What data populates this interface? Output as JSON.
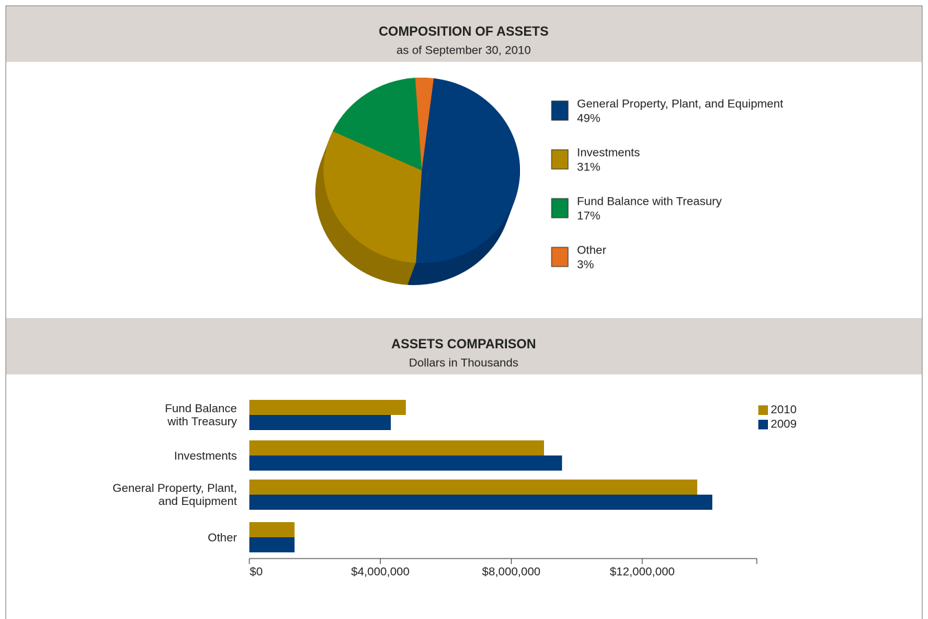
{
  "chart_data": [
    {
      "type": "pie",
      "title": "COMPOSITION OF ASSETS",
      "subtitle": "as of September 30, 2010",
      "categories": [
        "General Property, Plant, and Equipment",
        "Investments",
        "Fund Balance with Treasury",
        "Other"
      ],
      "values": [
        49,
        31,
        17,
        3
      ],
      "value_labels": [
        "49%",
        "31%",
        "17%",
        "3%"
      ],
      "colors": [
        "#003b7a",
        "#b08800",
        "#008a43",
        "#e5701f"
      ]
    },
    {
      "type": "bar",
      "orientation": "horizontal",
      "title": "ASSETS COMPARISON",
      "subtitle": "Dollars in Thousands",
      "categories": [
        "Fund Balance\nwith Treasury",
        "Investments",
        "General Property, Plant,\nand Equipment",
        "Other"
      ],
      "series": [
        {
          "name": "2010",
          "color": "#b08800",
          "values": [
            4780000,
            9000000,
            13680000,
            1380000
          ]
        },
        {
          "name": "2009",
          "color": "#003b7a",
          "values": [
            4320000,
            9550000,
            14140000,
            1380000
          ]
        }
      ],
      "xlim": [
        0,
        15500000
      ],
      "xticks": [
        {
          "value": 0,
          "label": "$0"
        },
        {
          "value": 4000000,
          "label": "$4,000,000"
        },
        {
          "value": 8000000,
          "label": "$8,000,000"
        },
        {
          "value": 12000000,
          "label": "$12,000,000"
        }
      ],
      "legend": "upper right"
    }
  ]
}
